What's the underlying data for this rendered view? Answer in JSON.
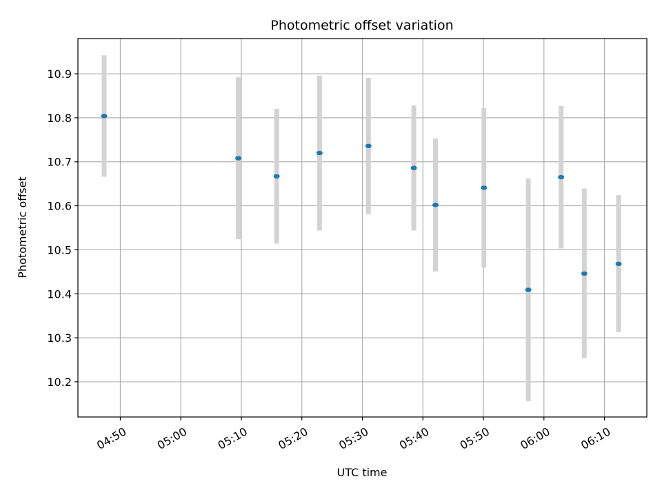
{
  "chart_data": {
    "type": "scatter",
    "title": "Photometric offset variation",
    "xlabel": "UTC time",
    "ylabel": "Photometric offset",
    "grid": true,
    "x_ticks": [
      "04:50",
      "05:00",
      "05:10",
      "05:20",
      "05:30",
      "05:40",
      "05:50",
      "06:00",
      "06:10"
    ],
    "y_ticks": [
      "10.2",
      "10.3",
      "10.4",
      "10.5",
      "10.6",
      "10.7",
      "10.8",
      "10.9"
    ],
    "xlim": [
      "04:43",
      "06:17"
    ],
    "ylim": [
      10.12,
      10.98
    ],
    "colors": {
      "point": "#1f77b4",
      "errorbar": "#d3d3d3",
      "grid": "#b0b0b0"
    },
    "points": [
      {
        "x": "04:47:20",
        "y": 10.804,
        "y_low": 10.666,
        "y_high": 10.942
      },
      {
        "x": "05:09:30",
        "y": 10.708,
        "y_low": 10.524,
        "y_high": 10.892
      },
      {
        "x": "05:15:50",
        "y": 10.667,
        "y_low": 10.514,
        "y_high": 10.82
      },
      {
        "x": "05:22:55",
        "y": 10.72,
        "y_low": 10.544,
        "y_high": 10.896
      },
      {
        "x": "05:31:00",
        "y": 10.736,
        "y_low": 10.581,
        "y_high": 10.891
      },
      {
        "x": "05:38:30",
        "y": 10.686,
        "y_low": 10.544,
        "y_high": 10.828
      },
      {
        "x": "05:42:05",
        "y": 10.602,
        "y_low": 10.451,
        "y_high": 10.753
      },
      {
        "x": "05:50:05",
        "y": 10.641,
        "y_low": 10.46,
        "y_high": 10.822
      },
      {
        "x": "05:57:25",
        "y": 10.409,
        "y_low": 10.156,
        "y_high": 10.662
      },
      {
        "x": "06:02:50",
        "y": 10.665,
        "y_low": 10.503,
        "y_high": 10.827
      },
      {
        "x": "06:06:40",
        "y": 10.446,
        "y_low": 10.254,
        "y_high": 10.639
      },
      {
        "x": "06:12:20",
        "y": 10.468,
        "y_low": 10.313,
        "y_high": 10.624
      }
    ]
  }
}
